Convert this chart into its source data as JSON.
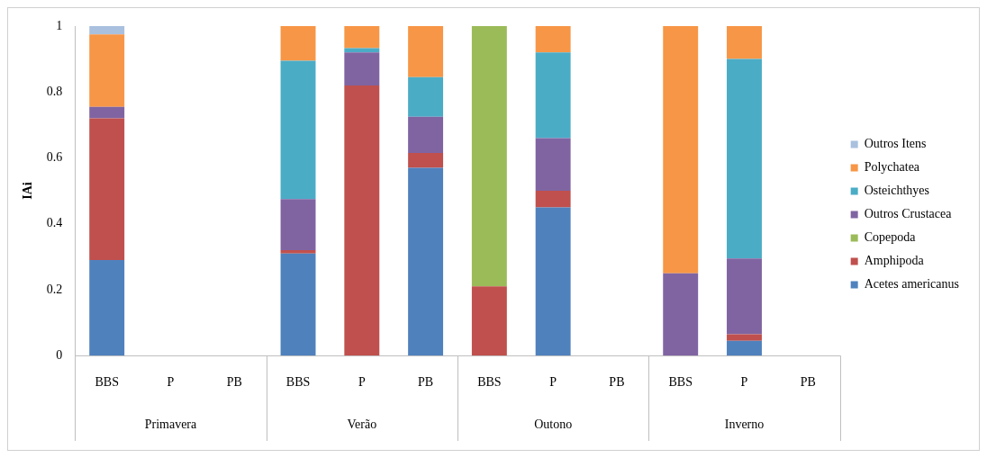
{
  "chart_data": {
    "type": "bar",
    "stacked": true,
    "ylabel": "IAi",
    "categories": [
      "BBS",
      "P",
      "PB",
      "BBS",
      "P",
      "PB",
      "BBS",
      "P",
      "PB",
      "BBS",
      "P",
      "PB"
    ],
    "annotations": [
      "Primavera",
      "Verão",
      "Outono",
      "Inverno"
    ],
    "ylim": [
      0,
      1
    ],
    "yticks": [
      0,
      0.2,
      0.4,
      0.6,
      0.8,
      1
    ],
    "grid": false,
    "legend": "right",
    "series": [
      {
        "name": "Acetes americanus",
        "color": "#4f81bd",
        "values": [
          0.29,
          null,
          null,
          0.31,
          0,
          0.57,
          0,
          0.45,
          null,
          0,
          0.045,
          null
        ]
      },
      {
        "name": "Amphipoda",
        "color": "#c0504d",
        "values": [
          0.43,
          null,
          null,
          0.01,
          0.82,
          0.045,
          0.21,
          0.05,
          null,
          0,
          0.02,
          null
        ]
      },
      {
        "name": "Copepoda",
        "color": "#9bbb59",
        "values": [
          0,
          null,
          null,
          0,
          0,
          0,
          0.79,
          0,
          null,
          0,
          0,
          null
        ]
      },
      {
        "name": "Outros Crustacea",
        "color": "#8064a2",
        "values": [
          0.035,
          null,
          null,
          0.155,
          0.1,
          0.11,
          0,
          0.16,
          null,
          0.25,
          0.23,
          null
        ]
      },
      {
        "name": "Osteichthyes",
        "color": "#4bacc6",
        "values": [
          0,
          null,
          null,
          0.42,
          0.013,
          0.12,
          0,
          0.26,
          null,
          0,
          0.605,
          null
        ]
      },
      {
        "name": "Polychatea",
        "color": "#f79646",
        "values": [
          0.22,
          null,
          null,
          0.105,
          0.067,
          0.155,
          0,
          0.08,
          null,
          0.75,
          0.1,
          null
        ]
      },
      {
        "name": "Outros Itens",
        "color": "#a9c0de",
        "values": [
          0.025,
          null,
          null,
          0,
          0,
          0,
          0,
          0,
          null,
          0,
          0,
          null
        ]
      }
    ]
  }
}
